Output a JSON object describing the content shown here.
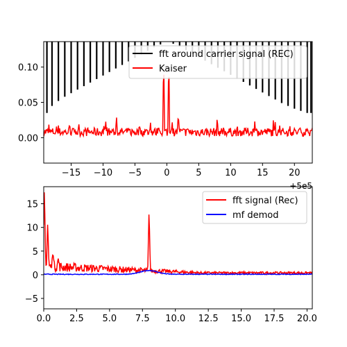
{
  "chart_data": [
    {
      "type": "line",
      "x_tick_labels": [
        "−15",
        "−10",
        "−5",
        "0",
        "5",
        "10",
        "15",
        "20"
      ],
      "y_tick_labels": [
        "0.00",
        "0.05",
        "0.10"
      ],
      "x_offset_label": "+5e5",
      "xlim": [
        -19.3,
        22.8
      ],
      "ylim": [
        -0.036,
        0.136
      ],
      "legend_position": "upper right",
      "series": [
        {
          "name": "fft around carrier signal (REC)",
          "color": "#000000",
          "comb_x": [
            -18.8,
            -18.0,
            -17.0,
            -16.0,
            -15.0,
            -14.0,
            -13.0,
            -12.0,
            -11.0,
            -10.0,
            -9.0,
            -8.0,
            -7.0,
            -6.0,
            -5.0,
            -4.0,
            -3.0,
            -2.0,
            -1.0,
            0.0,
            1.0,
            2.0,
            3.0,
            4.0,
            5.0,
            6.0,
            7.0,
            8.0,
            9.0,
            10.0,
            11.0,
            12.0,
            13.0,
            14.0,
            15.0,
            16.0,
            17.0,
            18.0,
            19.0,
            20.0,
            21.0,
            22.0,
            22.6
          ],
          "comb_bottom": [
            0.035,
            0.045,
            0.052,
            0.058,
            0.063,
            0.068,
            0.073,
            0.078,
            0.083,
            0.088,
            0.093,
            0.098,
            0.103,
            0.108,
            0.113,
            0.118,
            0.123,
            0.128,
            0.132,
            0.136,
            0.133,
            0.129,
            0.124,
            0.119,
            0.114,
            0.109,
            0.104,
            0.099,
            0.094,
            0.089,
            0.084,
            0.079,
            0.074,
            0.069,
            0.064,
            0.059,
            0.054,
            0.049,
            0.045,
            0.041,
            0.038,
            0.035,
            0.035
          ]
        },
        {
          "name": "Kaiser",
          "color": "#ff0000",
          "noise_mean": 0.008,
          "noise_amplitude": 0.006,
          "peaks": [
            {
              "x": -7.9,
              "y": 0.034
            },
            {
              "x": -0.5,
              "y": 0.136
            },
            {
              "x": 0.3,
              "y": 0.136
            },
            {
              "x": 1.8,
              "y": 0.04
            },
            {
              "x": 7.9,
              "y": 0.03
            }
          ]
        }
      ]
    },
    {
      "type": "line",
      "x_tick_labels": [
        "0.0",
        "2.5",
        "5.0",
        "7.5",
        "10.0",
        "12.5",
        "15.0",
        "17.5",
        "20.0"
      ],
      "y_tick_labels": [
        "−5",
        "0",
        "5",
        "10",
        "15"
      ],
      "xlim": [
        0,
        20.4
      ],
      "ylim": [
        -7.2,
        18.6
      ],
      "legend_position": "upper right",
      "series": [
        {
          "name": "fft signal (Rec)",
          "color": "#ff0000",
          "peaks": [
            {
              "x": 0.05,
              "y": 18.6
            },
            {
              "x": 0.3,
              "y": 10.8
            },
            {
              "x": 0.7,
              "y": 5.0
            },
            {
              "x": 1.1,
              "y": 3.5
            },
            {
              "x": 8.0,
              "y": 14.0
            }
          ],
          "baseline_start": 1.8,
          "baseline_end": 0.4
        },
        {
          "name": "mf demod",
          "color": "#0000ff",
          "level": 0.1,
          "bump_center": 8.0,
          "bump_height": 0.8
        }
      ]
    }
  ]
}
